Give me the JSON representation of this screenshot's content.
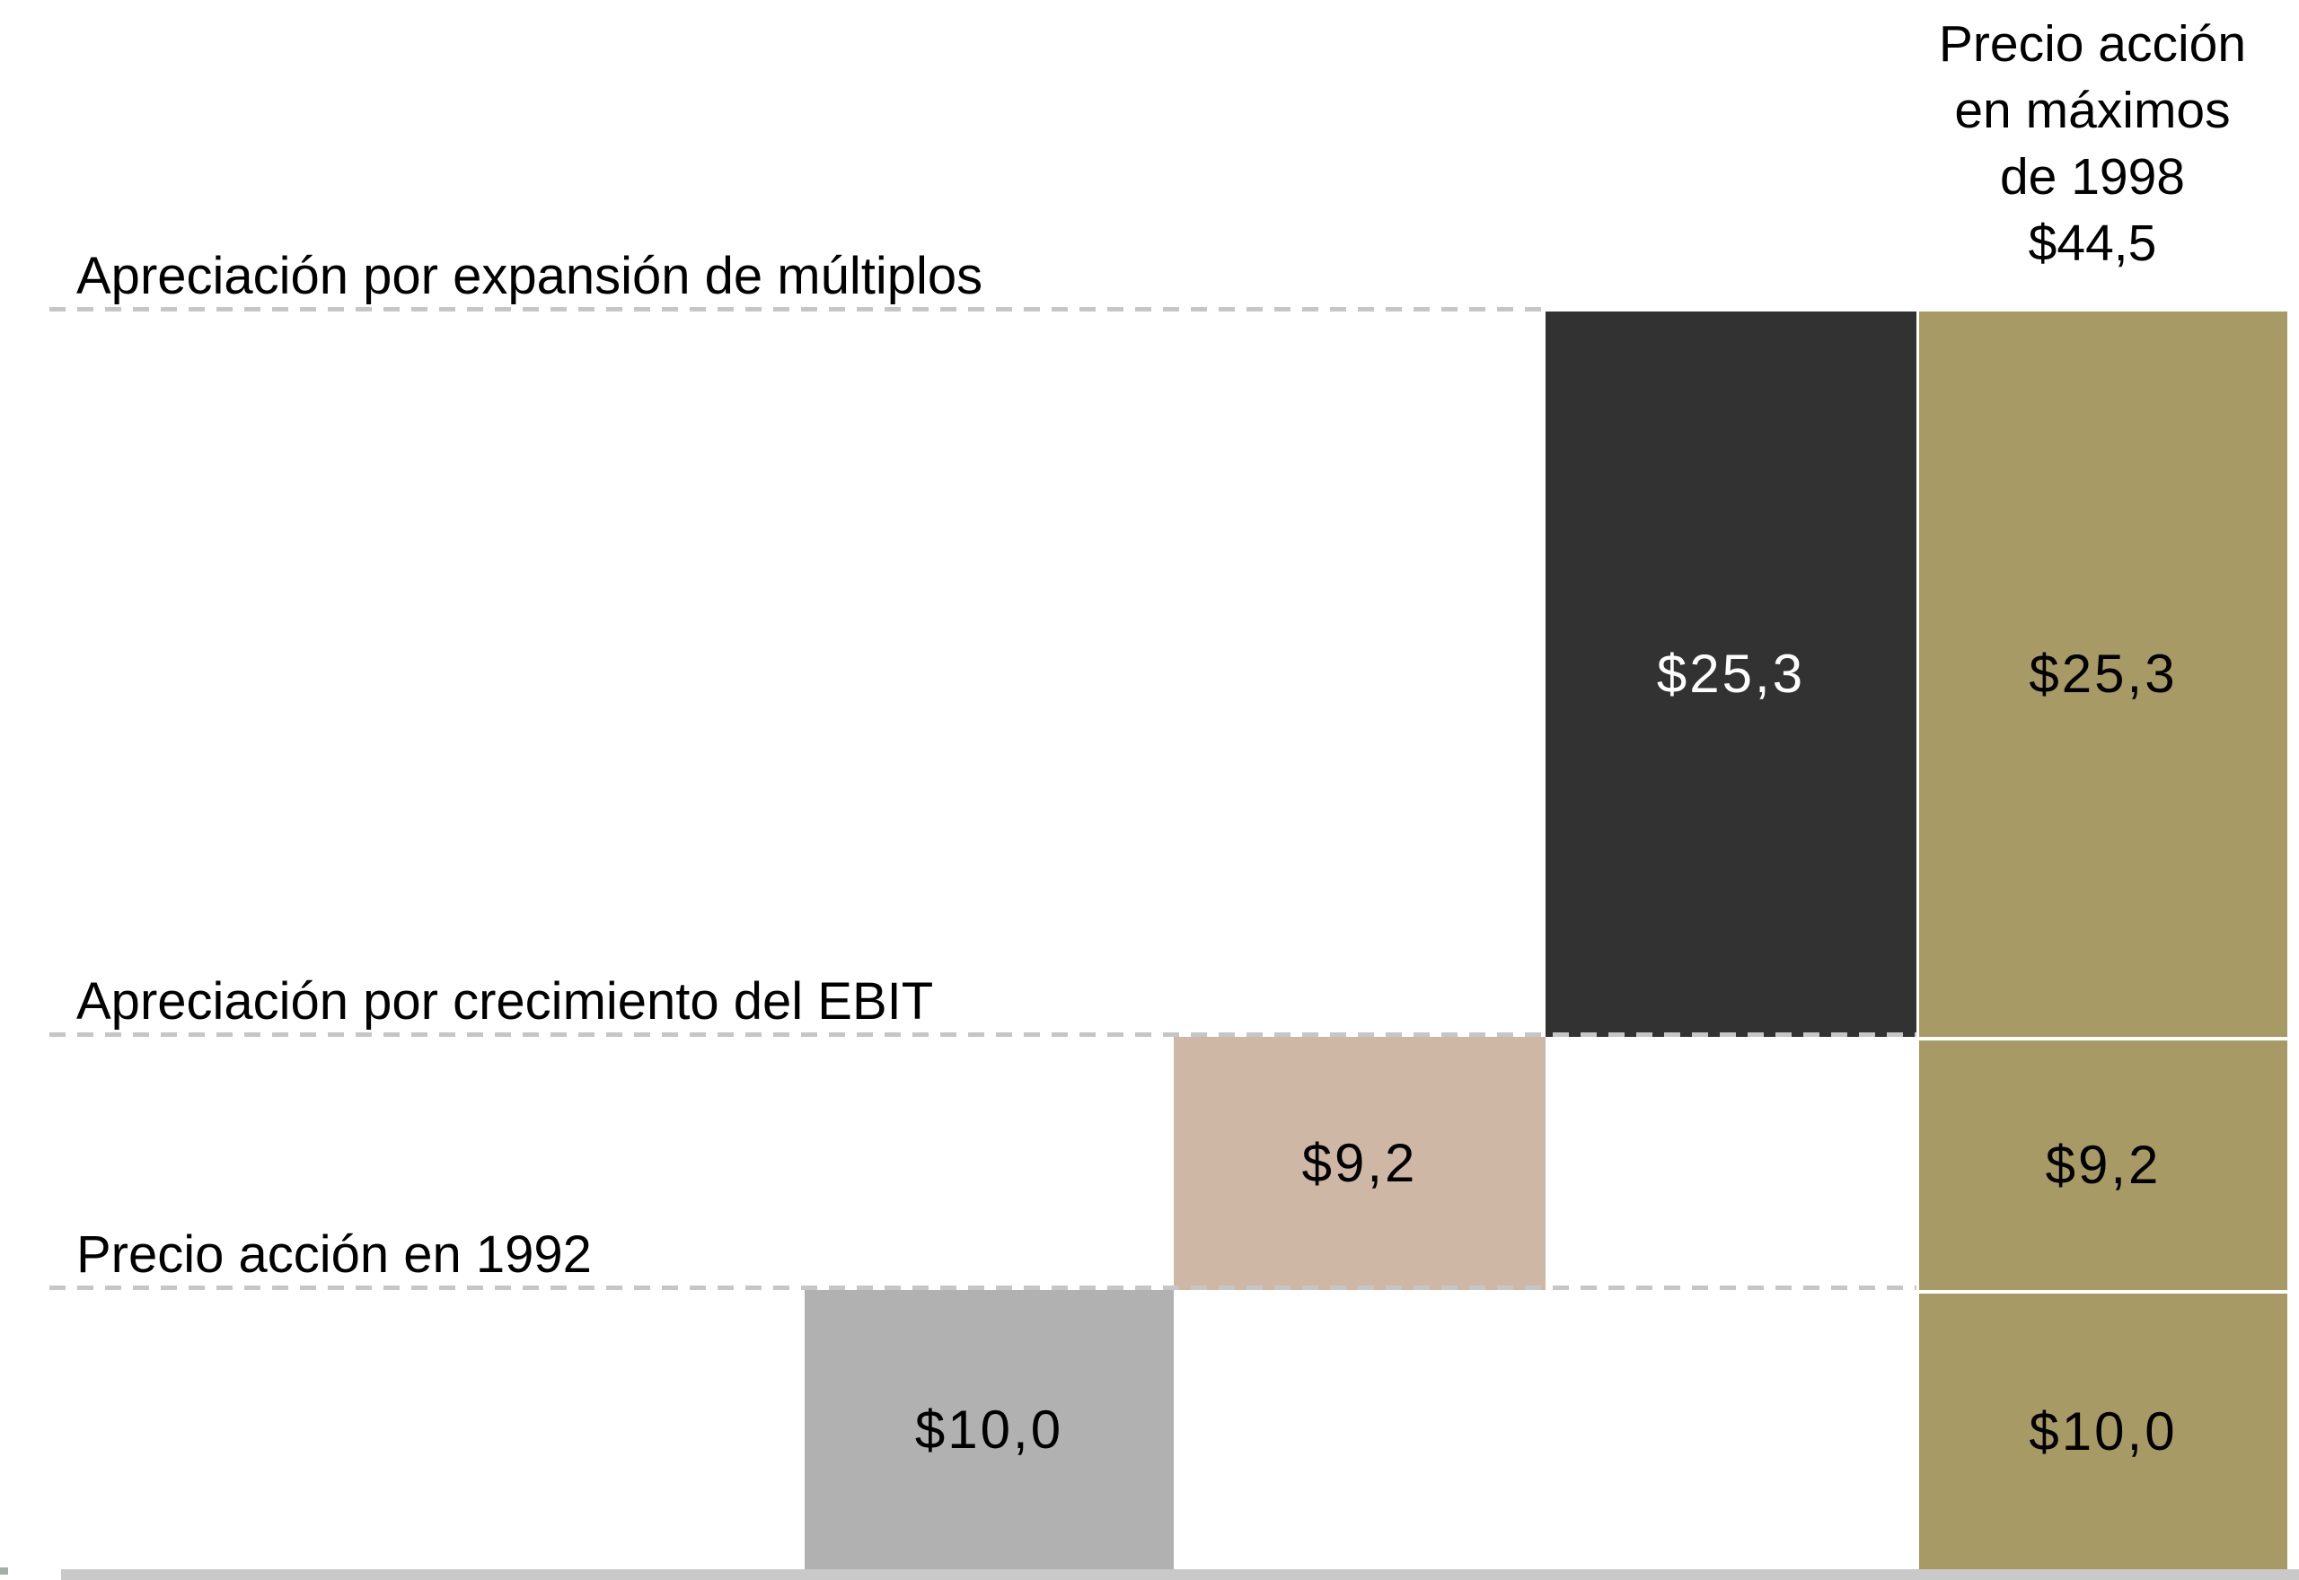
{
  "chart_data": {
    "type": "bar",
    "subtype": "waterfall",
    "orientation": "vertical",
    "title": "Precio acción en máximos de 1998",
    "legend": "none",
    "grid": "dashed horizontal level lines at each cumulative step",
    "ylim": [
      0,
      44.5
    ],
    "number_format": "dollar with comma decimal (es)",
    "categories": [
      "Precio acción en 1992",
      "Apreciación por crecimiento del EBIT",
      "Apreciación por expansión de múltiplos",
      "Precio acción en máximos de 1998"
    ],
    "series": [
      {
        "name": "Precio acción en 1992",
        "role": "increment",
        "start": 0,
        "end": 10.0,
        "value": 10.0,
        "label": "$10,0",
        "color": "#b1b1b1"
      },
      {
        "name": "Apreciación por crecimiento del EBIT",
        "role": "increment",
        "start": 10.0,
        "end": 19.2,
        "value": 9.2,
        "label": "$9,2",
        "color": "#cfb7a6"
      },
      {
        "name": "Apreciación por expansión de múltiplos",
        "role": "increment",
        "start": 19.2,
        "end": 44.5,
        "value": 25.3,
        "label": "$25,3",
        "color": "#323232"
      },
      {
        "name": "Precio acción en máximos de 1998",
        "role": "total",
        "start": 0,
        "end": 44.5,
        "value": 44.5,
        "label": "$44,5",
        "color": "#a79a64",
        "segments": [
          {
            "source": "Apreciación por expansión de múltiplos",
            "value": 25.3,
            "label": "$25,3"
          },
          {
            "source": "Apreciación por crecimiento del EBIT",
            "value": 9.2,
            "label": "$9,2"
          },
          {
            "source": "Precio acción en 1992",
            "value": 10.0,
            "label": "$10,0"
          }
        ]
      }
    ]
  },
  "level_labels": {
    "multiples": "Apreciación por expansión de múltiplos",
    "ebit": "Apreciación por crecimiento del EBIT",
    "base": "Precio acción en 1992"
  },
  "total_header": {
    "line1": "Precio acción",
    "line2": "en máximos",
    "line3": "de 1998",
    "line4": "$44,5"
  },
  "bar_values": {
    "base": "$10,0",
    "ebit": "$9,2",
    "multiples": "$25,3"
  },
  "total_values": {
    "multiples": "$25,3",
    "ebit": "$9,2",
    "base": "$10,0"
  },
  "colors": {
    "base_bar": "#b1b1b1",
    "ebit_bar": "#cfb7a6",
    "multiples_bar": "#323232",
    "total_bar": "#a79a64",
    "dashed_line": "#c6c6c6",
    "axis_strip": "#c9c9c9",
    "value_on_dark": "#ffffff",
    "value_on_light": "#000000",
    "background": "#ffffff"
  }
}
